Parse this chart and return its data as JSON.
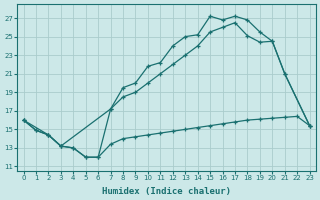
{
  "bg_color": "#cce8e8",
  "grid_color": "#aacccc",
  "line_color": "#1a7070",
  "xlabel": "Humidex (Indice chaleur)",
  "xlim": [
    -0.5,
    23.5
  ],
  "ylim": [
    10.5,
    28.5
  ],
  "xticks": [
    0,
    1,
    2,
    3,
    4,
    5,
    6,
    7,
    8,
    9,
    10,
    11,
    12,
    13,
    14,
    15,
    16,
    17,
    18,
    19,
    20,
    21,
    22,
    23
  ],
  "yticks": [
    11,
    13,
    15,
    17,
    19,
    21,
    23,
    25,
    27
  ],
  "curve_upper_x": [
    0,
    1,
    2,
    3,
    4,
    5,
    6,
    7,
    8,
    9,
    10,
    11,
    12,
    13,
    14,
    15,
    16,
    17,
    18,
    19,
    20,
    21,
    23
  ],
  "curve_upper_y": [
    16.0,
    14.9,
    14.4,
    13.2,
    13.0,
    12.0,
    12.0,
    17.2,
    19.5,
    20.0,
    21.8,
    22.2,
    24.0,
    25.0,
    25.2,
    27.2,
    26.8,
    27.2,
    26.8,
    25.5,
    24.5,
    21.0,
    15.4
  ],
  "curve_mid_x": [
    0,
    2,
    3,
    7,
    8,
    9,
    10,
    11,
    12,
    13,
    14,
    15,
    16,
    17,
    18,
    19,
    20,
    21,
    23
  ],
  "curve_mid_y": [
    16.0,
    14.4,
    13.2,
    17.2,
    18.5,
    19.0,
    20.0,
    21.0,
    22.0,
    23.0,
    24.0,
    25.5,
    26.0,
    26.5,
    25.1,
    24.4,
    24.5,
    21.0,
    15.4
  ],
  "curve_lower_x": [
    0,
    1,
    2,
    3,
    4,
    5,
    6,
    7,
    8,
    9,
    10,
    11,
    12,
    13,
    14,
    15,
    16,
    17,
    18,
    19,
    20,
    21,
    22,
    23
  ],
  "curve_lower_y": [
    16.0,
    14.9,
    14.4,
    13.2,
    13.0,
    12.0,
    12.0,
    13.4,
    14.0,
    14.2,
    14.4,
    14.6,
    14.8,
    15.0,
    15.2,
    15.4,
    15.6,
    15.8,
    16.0,
    16.1,
    16.2,
    16.3,
    16.4,
    15.4
  ]
}
